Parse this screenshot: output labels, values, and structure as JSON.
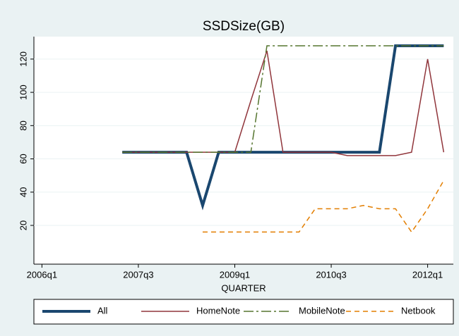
{
  "chart_data": {
    "type": "line",
    "title": "SSDSize(GB)",
    "x_label": "QUARTER",
    "x": [
      5,
      6,
      7,
      8,
      9,
      10,
      11,
      12,
      13,
      14,
      15,
      16,
      17,
      18,
      19,
      20,
      21,
      22,
      23,
      24,
      25
    ],
    "xlim": [
      -0.5,
      25.6
    ],
    "xticks": [
      {
        "value": 0,
        "label": "2006q1"
      },
      {
        "value": 6,
        "label": "2007q3"
      },
      {
        "value": 12,
        "label": "2009q1"
      },
      {
        "value": 18,
        "label": "2010q3"
      },
      {
        "value": 24,
        "label": "2012q1"
      }
    ],
    "ylim": [
      -3.3,
      133.5
    ],
    "yticks": [
      20,
      40,
      60,
      80,
      100,
      120
    ],
    "grid": true,
    "legend": "bottom",
    "series": [
      {
        "name": "All",
        "color": "#1a476f",
        "style": "solid",
        "width": 4,
        "values": [
          64,
          64,
          64,
          64,
          64,
          32,
          64,
          64,
          64,
          64,
          64,
          64,
          64,
          64,
          64,
          64,
          64,
          128,
          128,
          128,
          128
        ]
      },
      {
        "name": "HomeNote",
        "color": "#90353b",
        "style": "solid",
        "width": 1.5,
        "values": [
          64,
          64,
          64,
          64,
          64,
          64,
          64,
          64,
          95,
          125,
          64,
          64,
          64,
          64,
          62,
          62,
          62,
          62,
          64,
          120,
          64
        ]
      },
      {
        "name": "MobileNote",
        "color": "#55752f",
        "style": "dashdot",
        "width": 1.5,
        "values": [
          64,
          64,
          64,
          64,
          64,
          64,
          64,
          64,
          64,
          128,
          128,
          128,
          128,
          128,
          128,
          128,
          128,
          128,
          128,
          128,
          128
        ]
      },
      {
        "name": "Netbook",
        "color": "#e37e00",
        "style": "dash",
        "width": 1.5,
        "values": [
          null,
          null,
          null,
          null,
          null,
          16,
          16,
          16,
          16,
          16,
          16,
          16,
          30,
          30,
          30,
          32,
          30,
          30,
          16,
          30,
          47
        ]
      }
    ]
  }
}
